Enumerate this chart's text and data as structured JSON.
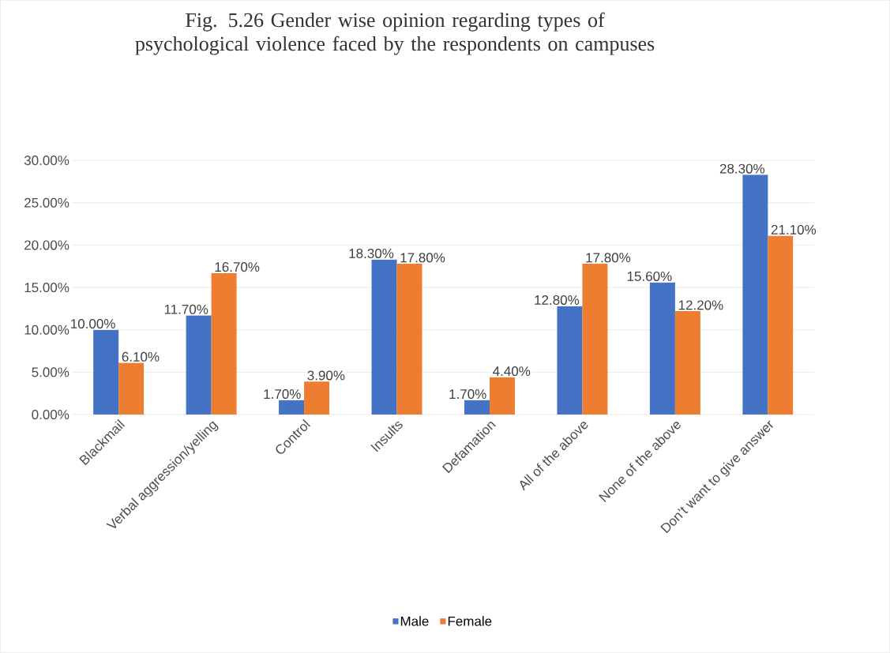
{
  "chart_data": {
    "type": "bar",
    "title": "Fig. 5.26  Gender wise opinion regarding types of psychological violence faced by the respondents  on campuses",
    "categories": [
      "Blackmail",
      "Verbal aggression/yelling",
      "Control",
      "Insults",
      "Defamation",
      "All of the above",
      "None of the above",
      "Don’t want to give answer"
    ],
    "series": [
      {
        "name": "Male",
        "color": "#4472c4",
        "values": [
          10.0,
          11.7,
          1.7,
          18.3,
          1.7,
          12.8,
          15.6,
          28.3
        ],
        "value_labels": [
          "10.00%",
          "11.70%",
          "1.70%",
          "18.30%",
          "1.70%",
          "12.80%",
          "15.60%",
          "28.30%"
        ]
      },
      {
        "name": "Female",
        "color": "#ed7d31",
        "values": [
          6.1,
          16.7,
          3.9,
          17.8,
          4.4,
          17.8,
          12.2,
          21.1
        ],
        "value_labels": [
          "6.10%",
          "16.70%",
          "3.90%",
          "17.80%",
          "4.40%",
          "17.80%",
          "12.20%",
          "21.10%"
        ]
      }
    ],
    "ylim": [
      0,
      30
    ],
    "yticks": [
      {
        "value": 0,
        "label": "0.00%"
      },
      {
        "value": 5,
        "label": "5.00%"
      },
      {
        "value": 10,
        "label": "10.00%"
      },
      {
        "value": 15,
        "label": "15.00%"
      },
      {
        "value": 20,
        "label": "20.00%"
      },
      {
        "value": 25,
        "label": "25.00%"
      },
      {
        "value": 30,
        "label": "30.00%"
      }
    ],
    "grid": "y",
    "legend": "bottom"
  }
}
